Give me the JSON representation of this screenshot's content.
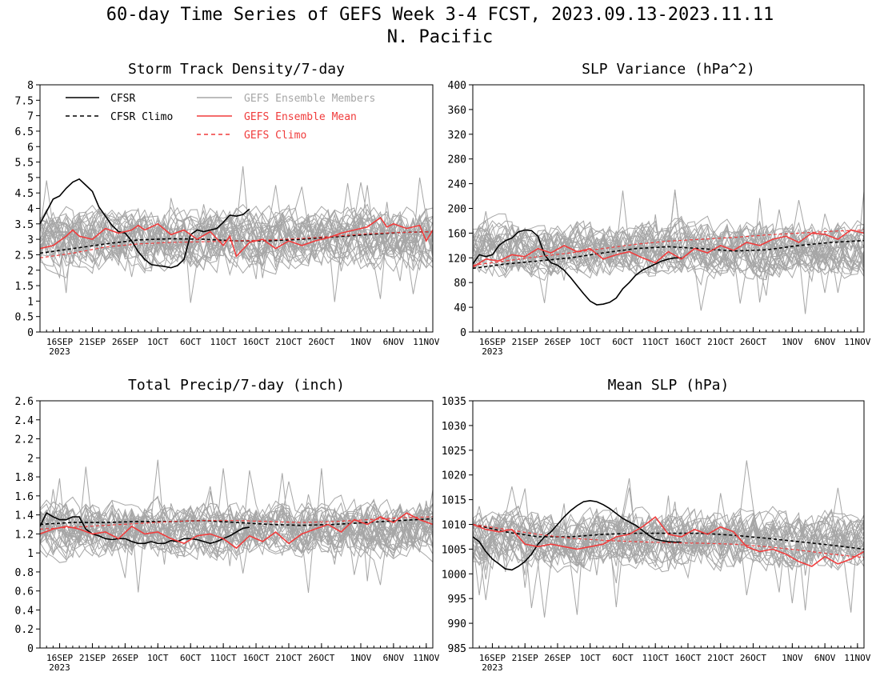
{
  "figure": {
    "title": "60-day Time Series of GEFS Week 3-4 FCST, 2023.09.13-2023.11.11",
    "subtitle": "N. Pacific"
  },
  "legend": {
    "cfsr": "CFSR",
    "cfsr_climo": "CFSR Climo",
    "members": "GEFS Ensemble Members",
    "mean": "GEFS Ensemble Mean",
    "gefs_climo": "GEFS Climo"
  },
  "colors": {
    "cfsr": "#000000",
    "members": "#a6a6a6",
    "mean": "#f03c3c",
    "gefs_climo": "#f03c3c"
  },
  "x_axis": {
    "day_range": [
      0,
      60
    ],
    "ticks": [
      {
        "label": "16SEP",
        "day": 3
      },
      {
        "label": "21SEP",
        "day": 8
      },
      {
        "label": "26SEP",
        "day": 13
      },
      {
        "label": "1OCT",
        "day": 18
      },
      {
        "label": "6OCT",
        "day": 23
      },
      {
        "label": "11OCT",
        "day": 28
      },
      {
        "label": "16OCT",
        "day": 33
      },
      {
        "label": "21OCT",
        "day": 38
      },
      {
        "label": "26OCT",
        "day": 43
      },
      {
        "label": "1NOV",
        "day": 49
      },
      {
        "label": "6NOV",
        "day": 54
      },
      {
        "label": "11NOV",
        "day": 59
      }
    ],
    "year_label": "2023"
  },
  "chart_data": [
    {
      "type": "line",
      "title": "Storm Track Density/7-day",
      "ylim": [
        0,
        8
      ],
      "yticks": [
        "0",
        "0.5",
        "1",
        "1.5",
        "2",
        "2.5",
        "3",
        "3.5",
        "4",
        "4.5",
        "5",
        "5.5",
        "6",
        "6.5",
        "7",
        "7.5",
        "8"
      ],
      "ensemble": {
        "members": 30,
        "center": 3.0,
        "spread": 1.0
      },
      "series": [
        {
          "name": "CFSR",
          "style": "solid",
          "x": [
            0,
            1,
            2,
            3,
            4,
            5,
            6,
            7,
            8,
            9,
            10,
            11,
            12,
            13,
            14,
            15,
            16,
            17,
            18,
            19,
            20,
            21,
            22,
            23,
            24,
            25,
            26,
            27,
            28,
            29,
            30,
            31,
            32
          ],
          "y": [
            3.5,
            3.9,
            4.3,
            4.4,
            4.65,
            4.85,
            4.95,
            4.75,
            4.55,
            4.05,
            3.75,
            3.45,
            3.25,
            3.2,
            2.95,
            2.6,
            2.35,
            2.18,
            2.15,
            2.12,
            2.08,
            2.15,
            2.35,
            3.15,
            3.3,
            3.25,
            3.3,
            3.35,
            3.55,
            3.78,
            3.75,
            3.8,
            3.98
          ]
        },
        {
          "name": "CFSR Climo",
          "style": "dashed",
          "x": [
            0,
            5,
            10,
            15,
            20,
            25,
            30,
            35,
            40,
            45,
            50,
            55,
            60
          ],
          "y": [
            2.55,
            2.7,
            2.85,
            2.98,
            3.02,
            3.0,
            2.95,
            2.95,
            3.0,
            3.08,
            3.15,
            3.22,
            3.25
          ]
        },
        {
          "name": "GEFS Ensemble Mean",
          "style": "solid",
          "x": [
            0,
            2,
            4,
            5,
            6,
            8,
            10,
            12,
            14,
            15,
            16,
            18,
            20,
            22,
            24,
            26,
            28,
            29,
            30,
            32,
            34,
            36,
            38,
            40,
            42,
            44,
            46,
            48,
            50,
            52,
            53,
            54,
            56,
            58,
            59,
            60
          ],
          "y": [
            2.7,
            2.8,
            3.1,
            3.3,
            3.1,
            3.0,
            3.35,
            3.2,
            3.3,
            3.45,
            3.3,
            3.5,
            3.15,
            3.3,
            3.0,
            3.25,
            2.8,
            3.1,
            2.45,
            2.9,
            3.0,
            2.7,
            2.95,
            2.8,
            2.95,
            3.05,
            3.2,
            3.3,
            3.4,
            3.7,
            3.4,
            3.5,
            3.35,
            3.45,
            2.95,
            3.3
          ]
        },
        {
          "name": "GEFS Climo",
          "style": "dashed",
          "x": [
            0,
            5,
            10,
            15,
            20,
            25,
            30,
            35,
            40,
            45,
            50,
            55,
            60
          ],
          "y": [
            2.4,
            2.55,
            2.75,
            2.85,
            2.9,
            2.92,
            2.95,
            2.98,
            3.03,
            3.1,
            3.18,
            3.22,
            3.25
          ]
        }
      ]
    },
    {
      "type": "line",
      "title": "SLP Variance (hPa^2)",
      "ylim": [
        0,
        400
      ],
      "yticks": [
        "0",
        "40",
        "80",
        "120",
        "160",
        "200",
        "240",
        "280",
        "320",
        "360",
        "400"
      ],
      "ensemble": {
        "members": 30,
        "center": 135,
        "spread": 45
      },
      "series": [
        {
          "name": "CFSR",
          "style": "solid",
          "x": [
            0,
            1,
            2,
            3,
            4,
            5,
            6,
            7,
            8,
            9,
            10,
            11,
            12,
            13,
            14,
            15,
            16,
            17,
            18,
            19,
            20,
            21,
            22,
            23,
            24,
            25,
            26,
            27,
            28,
            29,
            30,
            31,
            32
          ],
          "y": [
            110,
            125,
            122,
            125,
            140,
            148,
            152,
            162,
            165,
            164,
            155,
            125,
            112,
            108,
            100,
            88,
            75,
            62,
            50,
            44,
            45,
            48,
            55,
            70,
            80,
            92,
            100,
            105,
            110,
            115,
            118,
            120,
            120
          ]
        },
        {
          "name": "CFSR Climo",
          "style": "dashed",
          "x": [
            0,
            5,
            10,
            15,
            20,
            25,
            30,
            35,
            40,
            45,
            50,
            55,
            60
          ],
          "y": [
            103,
            110,
            115,
            120,
            128,
            135,
            138,
            135,
            131,
            133,
            140,
            145,
            148
          ]
        },
        {
          "name": "GEFS Ensemble Mean",
          "style": "solid",
          "x": [
            0,
            2,
            4,
            6,
            8,
            10,
            12,
            14,
            16,
            18,
            20,
            22,
            24,
            26,
            28,
            30,
            32,
            34,
            36,
            38,
            40,
            42,
            44,
            46,
            48,
            50,
            52,
            54,
            56,
            58,
            60
          ],
          "y": [
            105,
            118,
            115,
            125,
            122,
            135,
            128,
            140,
            130,
            135,
            118,
            125,
            130,
            120,
            112,
            130,
            118,
            135,
            128,
            140,
            132,
            145,
            140,
            150,
            155,
            145,
            160,
            158,
            150,
            165,
            160
          ]
        },
        {
          "name": "GEFS Climo",
          "style": "dashed",
          "x": [
            0,
            5,
            10,
            15,
            20,
            25,
            30,
            35,
            40,
            45,
            50,
            55,
            60
          ],
          "y": [
            108,
            115,
            122,
            128,
            135,
            142,
            147,
            150,
            153,
            157,
            160,
            163,
            165
          ]
        }
      ]
    },
    {
      "type": "line",
      "title": "Total Precip/7-day (inch)",
      "ylim": [
        0,
        2.6
      ],
      "yticks": [
        "0",
        "0.2",
        "0.4",
        "0.6",
        "0.8",
        "1",
        "1.2",
        "1.4",
        "1.6",
        "1.8",
        "2",
        "2.2",
        "2.4",
        "2.6"
      ],
      "ensemble": {
        "members": 30,
        "center": 1.25,
        "spread": 0.3
      },
      "series": [
        {
          "name": "CFSR",
          "style": "solid",
          "x": [
            0,
            1,
            2,
            3,
            4,
            5,
            6,
            7,
            8,
            9,
            10,
            11,
            12,
            13,
            14,
            15,
            16,
            17,
            18,
            19,
            20,
            21,
            22,
            23,
            24,
            25,
            26,
            27,
            28,
            29,
            30,
            31,
            32
          ],
          "y": [
            1.28,
            1.42,
            1.38,
            1.35,
            1.35,
            1.38,
            1.38,
            1.25,
            1.2,
            1.18,
            1.15,
            1.14,
            1.15,
            1.15,
            1.12,
            1.1,
            1.1,
            1.12,
            1.1,
            1.1,
            1.13,
            1.12,
            1.15,
            1.15,
            1.14,
            1.12,
            1.1,
            1.12,
            1.15,
            1.18,
            1.22,
            1.26,
            1.27
          ]
        },
        {
          "name": "CFSR Climo",
          "style": "dashed",
          "x": [
            0,
            5,
            10,
            15,
            20,
            25,
            30,
            35,
            40,
            45,
            50,
            55,
            60
          ],
          "y": [
            1.3,
            1.32,
            1.32,
            1.33,
            1.33,
            1.34,
            1.32,
            1.3,
            1.29,
            1.3,
            1.32,
            1.34,
            1.36
          ]
        },
        {
          "name": "GEFS Ensemble Mean",
          "style": "solid",
          "x": [
            0,
            2,
            4,
            6,
            8,
            10,
            12,
            14,
            16,
            18,
            20,
            22,
            24,
            26,
            28,
            30,
            32,
            34,
            36,
            38,
            40,
            42,
            44,
            46,
            48,
            50,
            52,
            54,
            56,
            58,
            60
          ],
          "y": [
            1.2,
            1.25,
            1.28,
            1.25,
            1.2,
            1.22,
            1.15,
            1.28,
            1.2,
            1.22,
            1.15,
            1.1,
            1.18,
            1.2,
            1.15,
            1.05,
            1.18,
            1.12,
            1.22,
            1.1,
            1.2,
            1.25,
            1.3,
            1.22,
            1.35,
            1.3,
            1.38,
            1.32,
            1.42,
            1.35,
            1.3
          ]
        },
        {
          "name": "GEFS Climo",
          "style": "dashed",
          "x": [
            0,
            5,
            10,
            15,
            20,
            25,
            30,
            35,
            40,
            45,
            50,
            55,
            60
          ],
          "y": [
            1.25,
            1.27,
            1.29,
            1.31,
            1.33,
            1.34,
            1.34,
            1.33,
            1.32,
            1.33,
            1.35,
            1.37,
            1.38
          ]
        }
      ]
    },
    {
      "type": "line",
      "title": "Mean SLP (hPa)",
      "ylim": [
        985,
        1035
      ],
      "yticks": [
        "985",
        "990",
        "995",
        "1000",
        "1005",
        "1010",
        "1015",
        "1020",
        "1025",
        "1030",
        "1035"
      ],
      "ensemble": {
        "members": 30,
        "center": 1007,
        "spread": 6
      },
      "series": [
        {
          "name": "CFSR",
          "style": "solid",
          "x": [
            0,
            1,
            2,
            3,
            4,
            5,
            6,
            7,
            8,
            9,
            10,
            11,
            12,
            13,
            14,
            15,
            16,
            17,
            18,
            19,
            20,
            21,
            22,
            23,
            24,
            25,
            26,
            27,
            28,
            29,
            30,
            31,
            32
          ],
          "y": [
            1007.5,
            1006.5,
            1004.5,
            1003,
            1002,
            1001,
            1000.8,
            1001.5,
            1002.5,
            1004,
            1006,
            1007.5,
            1008.5,
            1010,
            1011.5,
            1012.8,
            1013.8,
            1014.6,
            1014.8,
            1014.6,
            1014,
            1013.2,
            1012.2,
            1011.2,
            1010.5,
            1009.8,
            1008.8,
            1007.8,
            1007,
            1006.7,
            1006.5,
            1006.4,
            1006.4
          ]
        },
        {
          "name": "CFSR Climo",
          "style": "dashed",
          "x": [
            0,
            5,
            10,
            15,
            20,
            25,
            30,
            35,
            40,
            45,
            50,
            55,
            60
          ],
          "y": [
            1010,
            1008.5,
            1007.5,
            1007.5,
            1008,
            1008.2,
            1008.2,
            1008.2,
            1007.8,
            1007.2,
            1006.5,
            1005.8,
            1005
          ]
        },
        {
          "name": "GEFS Ensemble Mean",
          "style": "solid",
          "x": [
            0,
            2,
            4,
            6,
            8,
            10,
            12,
            14,
            16,
            18,
            20,
            22,
            24,
            26,
            28,
            30,
            32,
            34,
            36,
            38,
            40,
            42,
            44,
            46,
            48,
            50,
            52,
            54,
            56,
            58,
            60
          ],
          "y": [
            1010,
            1009,
            1008.5,
            1009,
            1006,
            1005.5,
            1006,
            1005.5,
            1005,
            1005.5,
            1006,
            1007.5,
            1008,
            1009.5,
            1011.5,
            1008,
            1007.5,
            1009,
            1008,
            1009.5,
            1008.5,
            1005.5,
            1004.5,
            1005,
            1004,
            1002.5,
            1001.5,
            1003.5,
            1002,
            1003,
            1004.5
          ]
        },
        {
          "name": "GEFS Climo",
          "style": "dashed",
          "x": [
            0,
            5,
            10,
            15,
            20,
            25,
            30,
            35,
            40,
            45,
            50,
            55,
            60
          ],
          "y": [
            1010,
            1009,
            1008,
            1007.2,
            1006.8,
            1006.5,
            1006.3,
            1006.2,
            1006,
            1005.5,
            1004.8,
            1004,
            1003.3
          ]
        }
      ]
    }
  ]
}
